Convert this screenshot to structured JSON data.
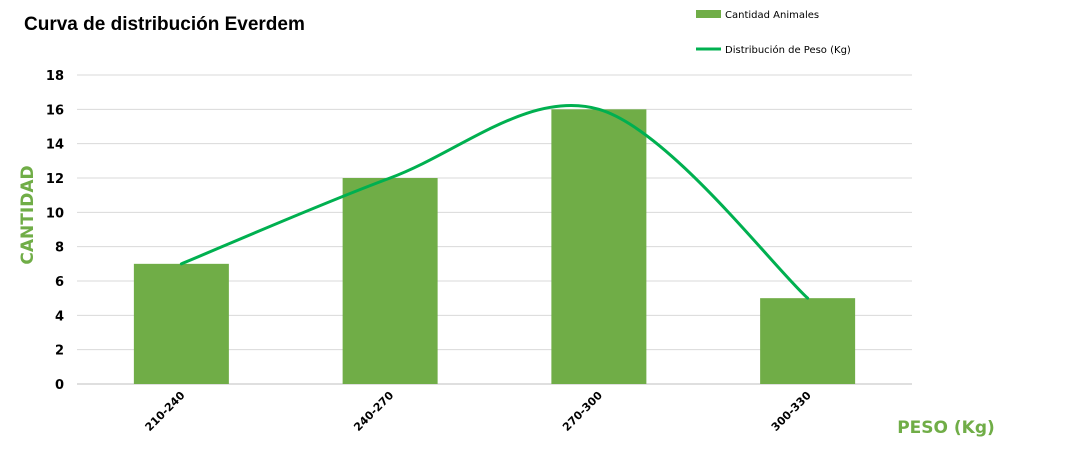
{
  "chart_data": {
    "type": "bar",
    "title": "Curva de distribución Everdem",
    "categories": [
      "210-240",
      "240-270",
      "270-300",
      "300-330"
    ],
    "series": [
      {
        "name": "Cantidad Animales",
        "type": "bar",
        "values": [
          7,
          12,
          16,
          5
        ]
      },
      {
        "name": "Distribución de Peso (Kg)",
        "type": "line",
        "smooth": true,
        "values": [
          7,
          12,
          16,
          5
        ]
      }
    ],
    "xlabel": "PESO (Kg)",
    "ylabel": "CANTIDAD",
    "ylim": [
      0,
      18
    ],
    "yticks": [
      0,
      2,
      4,
      6,
      8,
      10,
      12,
      14,
      16,
      18
    ],
    "grid": true,
    "legend": "top-right",
    "colors": {
      "bar": "#70AD47",
      "line": "#00B050",
      "axis_title": "#70AD47",
      "grid": "#D9D9D9"
    }
  }
}
